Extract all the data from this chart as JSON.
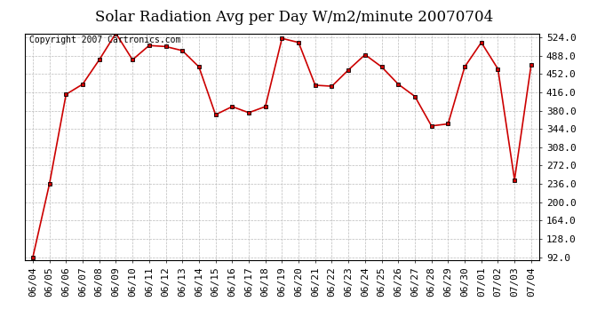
{
  "title": "Solar Radiation Avg per Day W/m2/minute 20070704",
  "copyright_text": "Copyright 2007 Cartronics.com",
  "x_labels": [
    "06/04",
    "06/05",
    "06/06",
    "06/07",
    "06/08",
    "06/09",
    "06/10",
    "06/11",
    "06/12",
    "06/13",
    "06/14",
    "06/15",
    "06/16",
    "06/17",
    "06/18",
    "06/19",
    "06/20",
    "06/21",
    "06/22",
    "06/23",
    "06/24",
    "06/25",
    "06/26",
    "06/27",
    "06/28",
    "06/29",
    "06/30",
    "07/01",
    "07/02",
    "07/03",
    "07/04"
  ],
  "y_values": [
    92.0,
    236.0,
    412.0,
    432.0,
    480.0,
    532.0,
    480.0,
    508.0,
    506.0,
    498.0,
    466.0,
    372.0,
    388.0,
    376.0,
    388.0,
    522.0,
    514.0,
    430.0,
    428.0,
    460.0,
    490.0,
    466.0,
    432.0,
    408.0,
    350.0,
    354.0,
    466.0,
    514.0,
    462.0,
    244.0,
    470.0
  ],
  "y_min": 92.0,
  "y_max": 524.0,
  "y_tick_step": 36.0,
  "line_color": "#cc0000",
  "marker": "s",
  "marker_size": 3,
  "bg_color": "#ffffff",
  "grid_color": "#bbbbbb",
  "title_fontsize": 12,
  "tick_fontsize": 8,
  "copyright_fontsize": 7,
  "fig_width": 6.9,
  "fig_height": 3.75,
  "dpi": 100
}
